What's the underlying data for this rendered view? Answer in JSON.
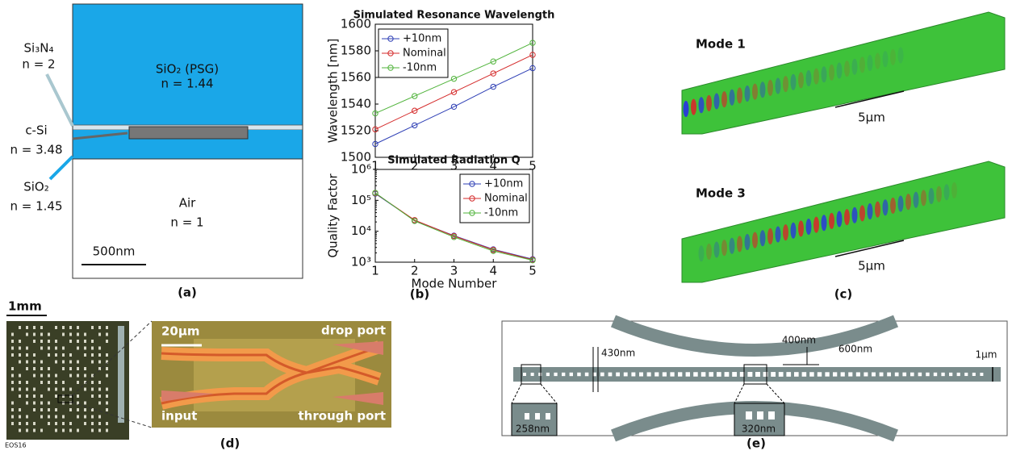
{
  "chart_data": [
    {
      "type": "line",
      "title": "Simulated Resonance Wavelength",
      "ylabel": "Wavelength [nm]",
      "x": [
        1,
        2,
        3,
        4,
        5
      ],
      "xlim": [
        1,
        5
      ],
      "xticks": [
        1,
        2,
        3,
        4,
        5
      ],
      "ylim": [
        1500,
        1600
      ],
      "yticks": [
        1500,
        1520,
        1540,
        1560,
        1580,
        1600
      ],
      "log_y": false,
      "legend": "top-left",
      "series": [
        {
          "name": "+10nm",
          "color": "#2e3fb5",
          "values": [
            1510,
            1524,
            1538,
            1553,
            1567
          ]
        },
        {
          "name": "Nominal",
          "color": "#d42a2a",
          "values": [
            1521,
            1535,
            1549,
            1563,
            1577
          ]
        },
        {
          "name": "-10nm",
          "color": "#4fb33a",
          "values": [
            1533,
            1546,
            1559,
            1572,
            1586
          ]
        }
      ]
    },
    {
      "type": "line",
      "title": "Simulated Radiation Q",
      "ylabel": "Quality Factor",
      "xlabel": "Mode Number",
      "x": [
        1,
        2,
        3,
        4,
        5
      ],
      "xlim": [
        1,
        5
      ],
      "xticks": [
        1,
        2,
        3,
        4,
        5
      ],
      "ylim": [
        1000,
        1000000
      ],
      "log_y": true,
      "legend": "top-right",
      "yticks": [
        {
          "value": 1000,
          "label": "10³"
        },
        {
          "value": 10000,
          "label": "10⁴"
        },
        {
          "value": 100000,
          "label": "10⁵"
        },
        {
          "value": 1000000,
          "label": "10⁶"
        }
      ],
      "series": [
        {
          "name": "+10nm",
          "color": "#2e3fb5",
          "values": [
            165000,
            22500,
            7200,
            2600,
            1250
          ]
        },
        {
          "name": "Nominal",
          "color": "#d42a2a",
          "values": [
            170000,
            23000,
            7000,
            2500,
            1200
          ]
        },
        {
          "name": "-10nm",
          "color": "#4fb33a",
          "values": [
            175000,
            21500,
            6500,
            2300,
            1150
          ]
        }
      ]
    }
  ],
  "panels": {
    "a": {
      "label": "(a)",
      "cladding": "SiO₂ (PSG)",
      "cladding_n": "n = 1.44",
      "nitride": "Si₃N₄",
      "nitride_n": "n = 2",
      "silicon": "c-Si",
      "silicon_n": "n = 3.48",
      "oxide": "SiO₂",
      "oxide_n": "n = 1.45",
      "air": "Air",
      "air_n": "n = 1",
      "scale": "500nm"
    },
    "b": {
      "label": "(b)"
    },
    "c": {
      "label": "(c)",
      "mode_top": "Mode 1",
      "scale_top": "5μm",
      "mode_bottom": "Mode 3",
      "scale_bottom": "5μm"
    },
    "d": {
      "label": "(d)",
      "chip_scale": "1mm",
      "chip_name": "EOS16",
      "scale": "20μm",
      "drop": "drop port",
      "input": "input",
      "through": "through port"
    },
    "e": {
      "label": "(e)",
      "period": "430nm",
      "gap": "400nm",
      "ring_width": "600nm",
      "width": "1μm",
      "hole_end": "258nm",
      "hole_center": "320nm"
    }
  }
}
